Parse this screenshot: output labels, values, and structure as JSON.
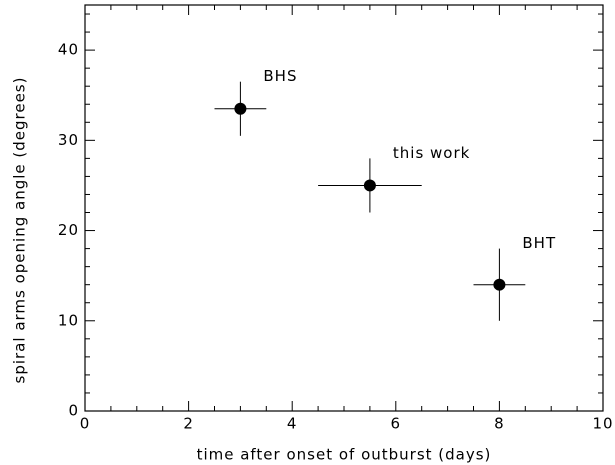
{
  "chart_data": {
    "type": "scatter",
    "xlabel": "time after onset of outburst (days)",
    "ylabel": "spiral arms opening angle (degrees)",
    "x": [
      3,
      5.5,
      8
    ],
    "y": [
      33.5,
      25,
      14
    ],
    "xerr": [
      0.5,
      1,
      0.5
    ],
    "yerr": [
      3,
      3,
      4
    ],
    "labels": [
      "BHS",
      "this work",
      "BHT"
    ],
    "color": "#000000",
    "xlim": [
      0,
      10
    ],
    "ylim": [
      0,
      45
    ],
    "xticks": [
      0,
      2,
      4,
      6,
      8,
      10
    ],
    "yticks": [
      0,
      10,
      20,
      30,
      40
    ],
    "xminorticks": [
      0.5,
      1,
      1.5,
      2.5,
      3,
      3.5,
      4.5,
      5,
      5.5,
      6.5,
      7,
      7.5,
      8.5,
      9,
      9.5
    ],
    "yminorticks": [
      2,
      4,
      6,
      8,
      12,
      14,
      16,
      18,
      22,
      24,
      26,
      28,
      32,
      34,
      36,
      38,
      42,
      44
    ]
  }
}
